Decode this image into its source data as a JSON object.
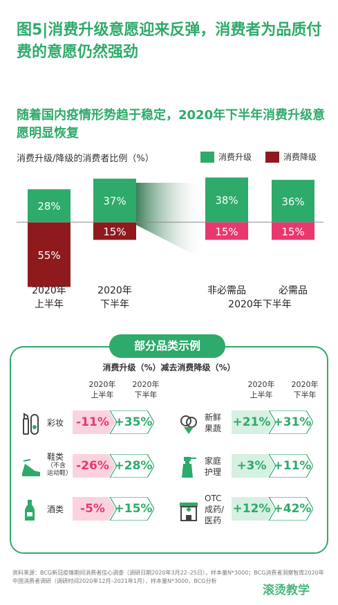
{
  "title": "图5|消费升级意愿迎来反弹，消费者为品质付费的意愿仍然强劲",
  "subtitle": "随着国内疫情形势趋于稳定，2020年下半年消费升级意愿明显恢复",
  "colors": {
    "green": "#2eaa6a",
    "darkred": "#8e1a1e",
    "pink": "#e8386e"
  },
  "chart_data": [
    {
      "type": "bar",
      "ylabel": "消费升级/降级的消费者比例（%）",
      "legend": [
        "消费升级",
        "消费降级"
      ],
      "categories": [
        "2020年上半年",
        "2020年下半年",
        "非必需品",
        "必需品"
      ],
      "category_lines": [
        [
          "2020年",
          "上半年"
        ],
        [
          "2020年",
          "下半年"
        ],
        [
          "非必需品"
        ],
        [
          "必需品"
        ]
      ],
      "group_label": "2020年下半年",
      "series": [
        {
          "name": "消费升级",
          "values": [
            28,
            37,
            38,
            36
          ],
          "labels": [
            "28%",
            "37%",
            "38%",
            "36%"
          ]
        },
        {
          "name": "消费降级",
          "values": [
            -55,
            -15,
            -15,
            -15
          ],
          "labels": [
            "55%",
            "15%",
            "15%",
            "15%"
          ]
        }
      ]
    },
    {
      "type": "table",
      "title": "部分品类示例",
      "subtitle": "消费升级（%）减去消费降级（%）",
      "columns": [
        "2020年上半年",
        "2020年下半年"
      ],
      "column_lines": [
        [
          "2020年",
          "上半年"
        ],
        [
          "2020年",
          "下半年"
        ]
      ],
      "rows": [
        {
          "category": "彩妆",
          "name_lines": [
            "彩妆"
          ],
          "icon": "lipstick-icon",
          "h1": -11,
          "h2": 35,
          "h1_label": "-11%",
          "h2_label": "+35%"
        },
        {
          "category": "鞋类（不含运动鞋）",
          "name_lines": [
            "鞋类"
          ],
          "note_lines": [
            "（不含",
            "运动鞋）"
          ],
          "icon": "shoe-icon",
          "h1": -26,
          "h2": 28,
          "h1_label": "-26%",
          "h2_label": "+28%"
        },
        {
          "category": "酒类",
          "name_lines": [
            "酒类"
          ],
          "icon": "wine-icon",
          "h1": -5,
          "h2": 15,
          "h1_label": "-5%",
          "h2_label": "+15%"
        },
        {
          "category": "新鲜果蔬",
          "name_lines": [
            "新鲜",
            "果蔬"
          ],
          "icon": "vegetable-icon",
          "h1": 21,
          "h2": 31,
          "h1_label": "+21%",
          "h2_label": "+31%"
        },
        {
          "category": "家庭护理",
          "name_lines": [
            "家庭",
            "护理"
          ],
          "icon": "spray-bottle-icon",
          "h1": 3,
          "h2": 11,
          "h1_label": "+3%",
          "h2_label": "+11%"
        },
        {
          "category": "OTC成药/医药",
          "name_lines": [
            "OTC",
            "成药/",
            "医药"
          ],
          "icon": "pharmacy-icon",
          "h1": 12,
          "h2": 42,
          "h1_label": "+12%",
          "h2_label": "+42%"
        }
      ]
    }
  ],
  "source": "资料来源：BCG新冠疫情期间消费者信心调查（调研日期2020年3月22–25日），样本量N*3000；BCG消费者洞察智库2020年中国消费者调研（调研时间2020年12月–2021年1月），样本量N*3000，BCG分析",
  "watermark": "滚烫教学"
}
